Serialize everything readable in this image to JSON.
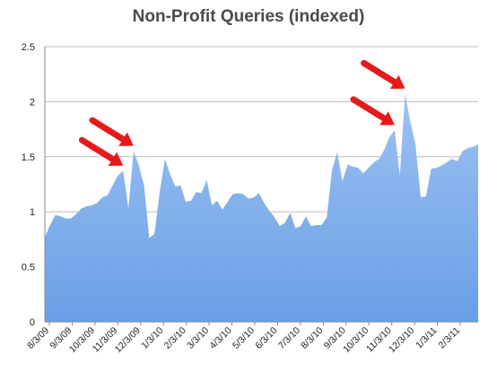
{
  "chart_data": {
    "type": "area",
    "title": "Non-Profit Queries (indexed)",
    "xlabel": "",
    "ylabel": "",
    "ylim": [
      0,
      2.5
    ],
    "yticks": [
      "0",
      "0.5",
      "1",
      "1.5",
      "2",
      "2.5"
    ],
    "xticks": [
      "8/3/09",
      "9/3/09",
      "10/3/09",
      "11/3/09",
      "12/3/09",
      "1/3/10",
      "2/3/10",
      "3/3/10",
      "4/3/10",
      "5/3/10",
      "6/3/10",
      "7/3/10",
      "8/3/10",
      "9/3/10",
      "10/3/10",
      "11/3/10",
      "12/3/10",
      "1/3/11",
      "2/3/11"
    ],
    "grid": "horizontal",
    "fill_color": "#6a9fe6",
    "fill_color_top": "#9cc2f2",
    "arrow_color": "#e8191b",
    "series": [
      {
        "values": [
          0.77,
          0.88,
          0.97,
          0.96,
          0.94,
          0.94,
          0.98,
          1.03,
          1.05,
          1.06,
          1.08,
          1.13,
          1.15,
          1.24,
          1.33,
          1.37,
          1.03,
          1.55,
          1.42,
          1.24,
          0.76,
          0.8,
          1.18,
          1.48,
          1.34,
          1.23,
          1.24,
          1.09,
          1.1,
          1.18,
          1.17,
          1.29,
          1.06,
          1.1,
          1.02,
          1.09,
          1.16,
          1.17,
          1.16,
          1.12,
          1.13,
          1.17,
          1.08,
          1.01,
          0.95,
          0.87,
          0.9,
          0.99,
          0.85,
          0.87,
          0.96,
          0.87,
          0.88,
          0.88,
          0.95,
          1.38,
          1.54,
          1.28,
          1.43,
          1.41,
          1.4,
          1.35,
          1.4,
          1.45,
          1.48,
          1.56,
          1.68,
          1.74,
          1.33,
          2.07,
          1.82,
          1.61,
          1.13,
          1.14,
          1.39,
          1.4,
          1.42,
          1.45,
          1.48,
          1.46,
          1.55,
          1.58,
          1.59,
          1.61
        ]
      }
    ],
    "annotations": [
      {
        "type": "arrow",
        "point_index": 15
      },
      {
        "type": "arrow",
        "point_index": 17
      },
      {
        "type": "arrow",
        "point_index": 67
      },
      {
        "type": "arrow",
        "point_index": 69
      }
    ]
  }
}
